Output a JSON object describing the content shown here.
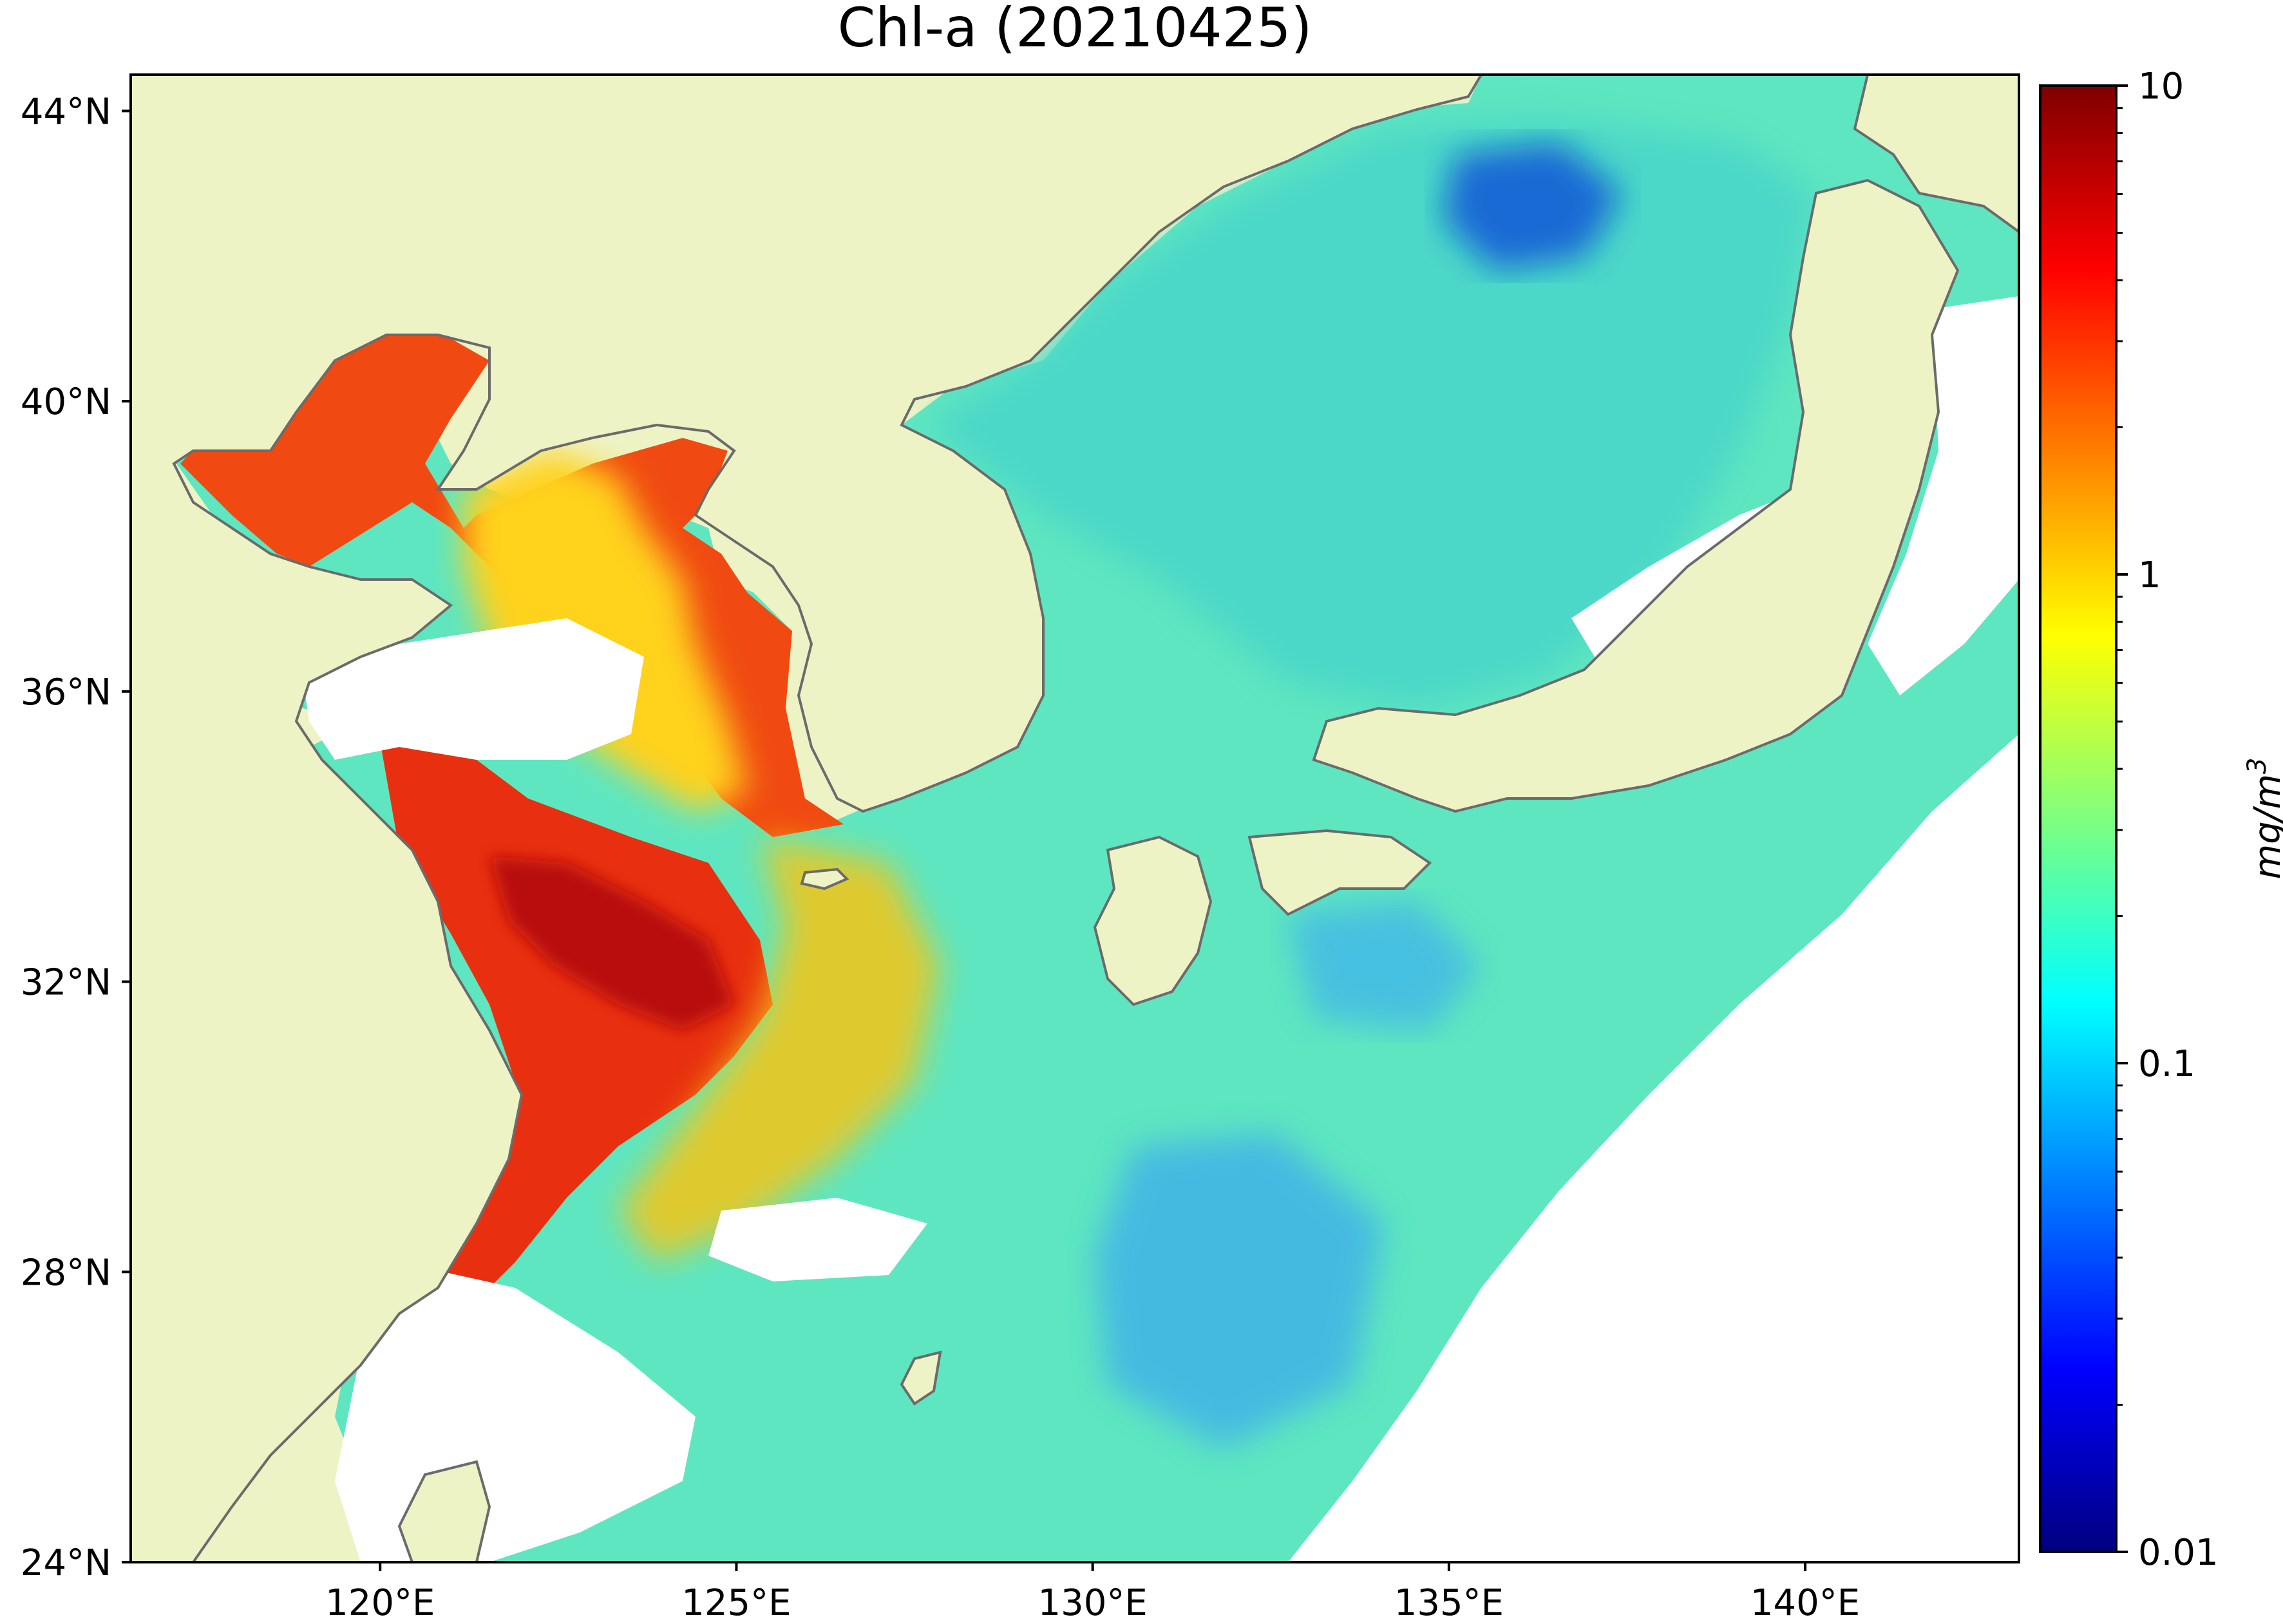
{
  "title": "Chl-a (20210425)",
  "map": {
    "lon_range": [
      116.5,
      143
    ],
    "lat_range": [
      24,
      44.5
    ],
    "lat_ticks": [
      {
        "value": 44,
        "label": "44°N"
      },
      {
        "value": 40,
        "label": "40°N"
      },
      {
        "value": 36,
        "label": "36°N"
      },
      {
        "value": 32,
        "label": "32°N"
      },
      {
        "value": 28,
        "label": "28°N"
      },
      {
        "value": 24,
        "label": "24°N"
      }
    ],
    "lon_ticks": [
      {
        "value": 120,
        "label": "120°E"
      },
      {
        "value": 125,
        "label": "125°E"
      },
      {
        "value": 130,
        "label": "130°E"
      },
      {
        "value": 135,
        "label": "135°E"
      },
      {
        "value": 140,
        "label": "140°E"
      }
    ],
    "colors": {
      "land": "#eef3c6",
      "coast": "#6b6b6b",
      "no_data": "#ffffff"
    }
  },
  "colorbar": {
    "scale": "log",
    "range": [
      0.01,
      10
    ],
    "unit_label": "mg/m",
    "unit_superscript": "3",
    "ticks": [
      {
        "value": 10,
        "label": "10"
      },
      {
        "value": 1,
        "label": "1"
      },
      {
        "value": 0.1,
        "label": "0.1"
      },
      {
        "value": 0.01,
        "label": "0.01"
      }
    ],
    "colormap": "jet",
    "colormap_stops": [
      "#00007f",
      "#0000ff",
      "#007fff",
      "#00ffff",
      "#7fff7f",
      "#ffff00",
      "#ff7f00",
      "#ff0000",
      "#7f0000"
    ]
  }
}
